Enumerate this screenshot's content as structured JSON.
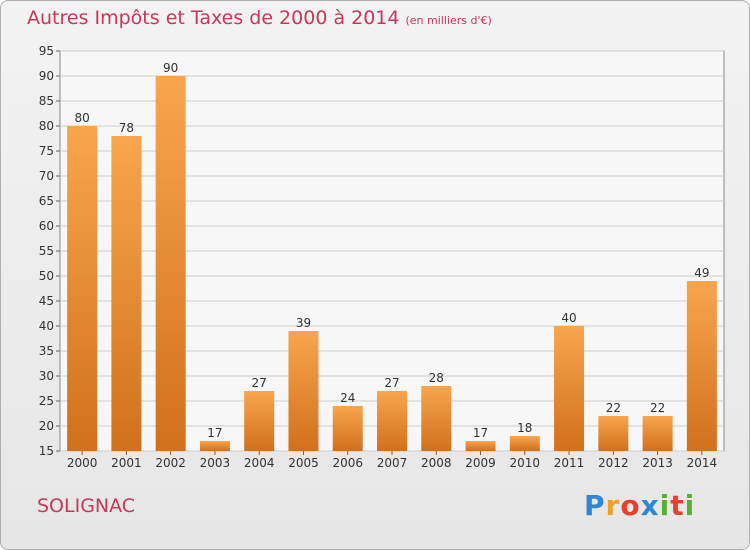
{
  "chart_data": {
    "type": "bar",
    "title": "Autres Impôts et Taxes de 2000 à 2014",
    "subtitle": "(en milliers d'€)",
    "categories": [
      "2000",
      "2001",
      "2002",
      "2003",
      "2004",
      "2005",
      "2006",
      "2007",
      "2008",
      "2009",
      "2010",
      "2011",
      "2012",
      "2013",
      "2014"
    ],
    "values": [
      80,
      78,
      90,
      17,
      27,
      39,
      24,
      27,
      28,
      17,
      18,
      40,
      22,
      22,
      49
    ],
    "ylim": [
      15,
      95
    ],
    "yticks": [
      15,
      20,
      25,
      30,
      35,
      40,
      45,
      50,
      55,
      60,
      65,
      70,
      75,
      80,
      85,
      90,
      95
    ],
    "grid": true,
    "bar_color": "#f08c2e"
  },
  "commune": "SOLIGNAC",
  "logo": {
    "letters": [
      "P",
      "r",
      "o",
      "x",
      "i",
      "t",
      "i"
    ],
    "colors": [
      "#2e86d6",
      "#f0a023",
      "#e8402c",
      "#2e86d6",
      "#58b030",
      "#e8402c",
      "#58b030"
    ]
  }
}
